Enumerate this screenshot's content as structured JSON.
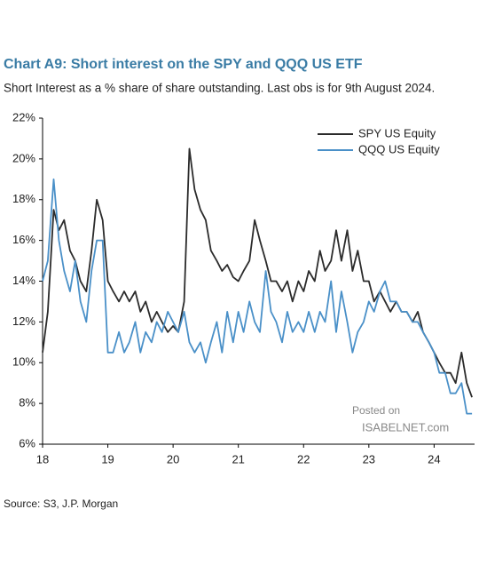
{
  "chart_data": {
    "type": "line",
    "title": "Chart A9: Short interest on the SPY and QQQ US ETF",
    "subtitle": "Short Interest as a % share of share outstanding. Last obs is for 9th August 2024.",
    "source": "Source: S3, J.P. Morgan",
    "watermark": [
      "Posted on",
      "ISABELNET.com"
    ],
    "x": [
      18,
      18.08,
      18.17,
      18.25,
      18.33,
      18.42,
      18.5,
      18.58,
      18.67,
      18.75,
      18.83,
      18.92,
      19,
      19.08,
      19.17,
      19.25,
      19.33,
      19.42,
      19.5,
      19.58,
      19.67,
      19.75,
      19.83,
      19.92,
      20,
      20.08,
      20.17,
      20.25,
      20.33,
      20.42,
      20.5,
      20.58,
      20.67,
      20.75,
      20.83,
      20.92,
      21,
      21.08,
      21.17,
      21.25,
      21.33,
      21.42,
      21.5,
      21.58,
      21.67,
      21.75,
      21.83,
      21.92,
      22,
      22.08,
      22.17,
      22.25,
      22.33,
      22.42,
      22.5,
      22.58,
      22.67,
      22.75,
      22.83,
      22.92,
      23,
      23.08,
      23.17,
      23.25,
      23.33,
      23.42,
      23.5,
      23.58,
      23.67,
      23.75,
      23.83,
      23.92,
      24,
      24.08,
      24.17,
      24.25,
      24.33,
      24.42,
      24.5,
      24.58
    ],
    "series": [
      {
        "name": "SPY US Equity",
        "color": "#2b2b2b",
        "values": [
          10.5,
          12.5,
          17.5,
          16.5,
          17.0,
          15.5,
          15.0,
          14.0,
          13.5,
          15.5,
          18.0,
          17.0,
          14.0,
          13.5,
          13.0,
          13.5,
          13.0,
          13.5,
          12.5,
          13.0,
          12.0,
          12.5,
          12.0,
          11.5,
          11.8,
          11.5,
          13.0,
          20.5,
          18.5,
          17.5,
          17.0,
          15.5,
          15.0,
          14.5,
          14.8,
          14.2,
          14.0,
          14.5,
          15.0,
          17.0,
          16.0,
          15.0,
          14.0,
          14.0,
          13.5,
          14.0,
          13.0,
          14.0,
          13.5,
          14.5,
          14.0,
          15.5,
          14.5,
          15.0,
          16.5,
          15.0,
          16.5,
          14.5,
          15.5,
          14.0,
          14.0,
          13.0,
          13.5,
          13.0,
          12.5,
          13.0,
          12.5,
          12.5,
          12.0,
          12.5,
          11.5,
          11.0,
          10.5,
          10.0,
          9.5,
          9.5,
          9.0,
          10.5,
          9.0,
          8.3
        ]
      },
      {
        "name": "QQQ US Equity",
        "color": "#4a90c8",
        "values": [
          14.0,
          15.0,
          19.0,
          16.0,
          14.5,
          13.5,
          15.0,
          13.0,
          12.0,
          14.5,
          16.0,
          16.0,
          10.5,
          10.5,
          11.5,
          10.5,
          11.0,
          12.0,
          10.5,
          11.5,
          11.0,
          12.0,
          11.5,
          12.5,
          12.0,
          11.5,
          12.5,
          11.0,
          10.5,
          11.0,
          10.0,
          11.0,
          12.0,
          10.5,
          12.5,
          11.0,
          12.5,
          11.5,
          13.0,
          12.0,
          11.5,
          14.5,
          12.5,
          12.0,
          11.0,
          12.5,
          11.5,
          12.0,
          11.5,
          12.5,
          11.5,
          12.5,
          12.0,
          14.0,
          11.5,
          13.5,
          12.0,
          10.5,
          11.5,
          12.0,
          13.0,
          12.5,
          13.5,
          14.0,
          13.0,
          13.0,
          12.5,
          12.5,
          12.0,
          12.0,
          11.5,
          11.0,
          10.5,
          9.5,
          9.5,
          8.5,
          8.5,
          9.0,
          7.5,
          7.5
        ]
      }
    ],
    "xlim": [
      18,
      24.62
    ],
    "xticks": [
      18,
      19,
      20,
      21,
      22,
      23,
      24
    ],
    "ylim": [
      6,
      22
    ],
    "yticks": [
      {
        "value": 6,
        "label": "6%"
      },
      {
        "value": 8,
        "label": "8%"
      },
      {
        "value": 10,
        "label": "10%"
      },
      {
        "value": 12,
        "label": "12%"
      },
      {
        "value": 14,
        "label": "14%"
      },
      {
        "value": 16,
        "label": "16%"
      },
      {
        "value": 18,
        "label": "18%"
      },
      {
        "value": 20,
        "label": "20%"
      },
      {
        "value": 22,
        "label": "22%"
      }
    ],
    "legend": "top-right"
  }
}
